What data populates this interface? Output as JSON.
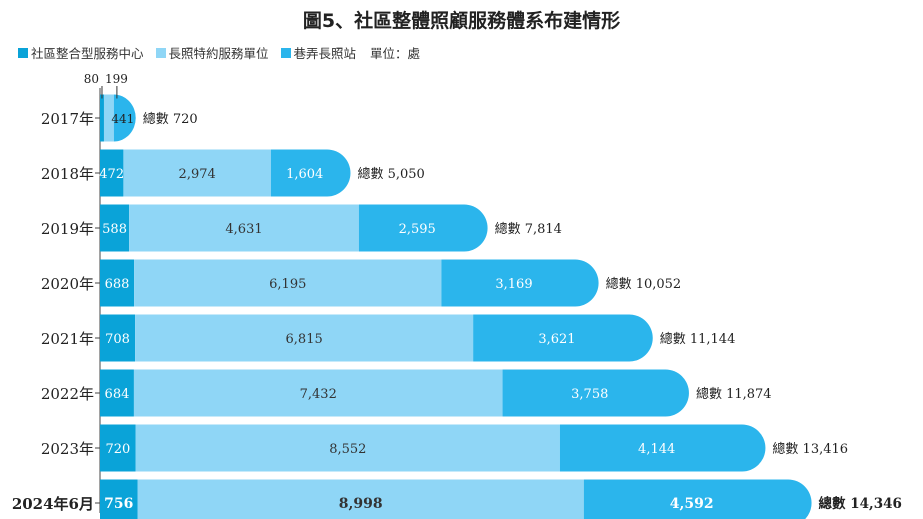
{
  "title": "圖5、社區整體照顧服務體系布建情形",
  "unit_label": "單位：處",
  "colors": {
    "a": "#0aa3d8",
    "b": "#8fd6f6",
    "c": "#2bb5ec",
    "axis": "#444444"
  },
  "chart_data": {
    "type": "bar",
    "orientation": "horizontal",
    "stacked": true,
    "categories": [
      "2017年",
      "2018年",
      "2019年",
      "2020年",
      "2021年",
      "2022年",
      "2023年",
      "2024年6月"
    ],
    "series": [
      {
        "name": "社區整合型服務中心",
        "color": "#0aa3d8",
        "values": [
          80,
          472,
          588,
          688,
          708,
          684,
          720,
          756
        ]
      },
      {
        "name": "長照特約服務單位",
        "color": "#8fd6f6",
        "values": [
          199,
          2974,
          4631,
          6195,
          6815,
          7432,
          8552,
          8998
        ]
      },
      {
        "name": "巷弄長照站",
        "color": "#2bb5ec",
        "values": [
          441,
          1604,
          2595,
          3169,
          3621,
          3758,
          4144,
          4592
        ]
      }
    ],
    "series_labels": [
      [
        "80",
        "472",
        "588",
        "688",
        "708",
        "684",
        "720",
        "756"
      ],
      [
        "199",
        "2,974",
        "4,631",
        "6,195",
        "6,815",
        "7,432",
        "8,552",
        "8,998"
      ],
      [
        "441",
        "1,604",
        "2,595",
        "3,169",
        "3,621",
        "3,758",
        "4,144",
        "4,592"
      ]
    ],
    "totals": [
      720,
      5050,
      7814,
      10052,
      11144,
      11874,
      13416,
      14346
    ],
    "total_labels": [
      "總數 720",
      "總數 5,050",
      "總數 7,814",
      "總數 10,052",
      "總數 11,144",
      "總數 11,874",
      "總數 13,416",
      "總數 14,346"
    ],
    "highlight_category": "2024年6月",
    "legend_position": "top-left",
    "grid": false
  }
}
